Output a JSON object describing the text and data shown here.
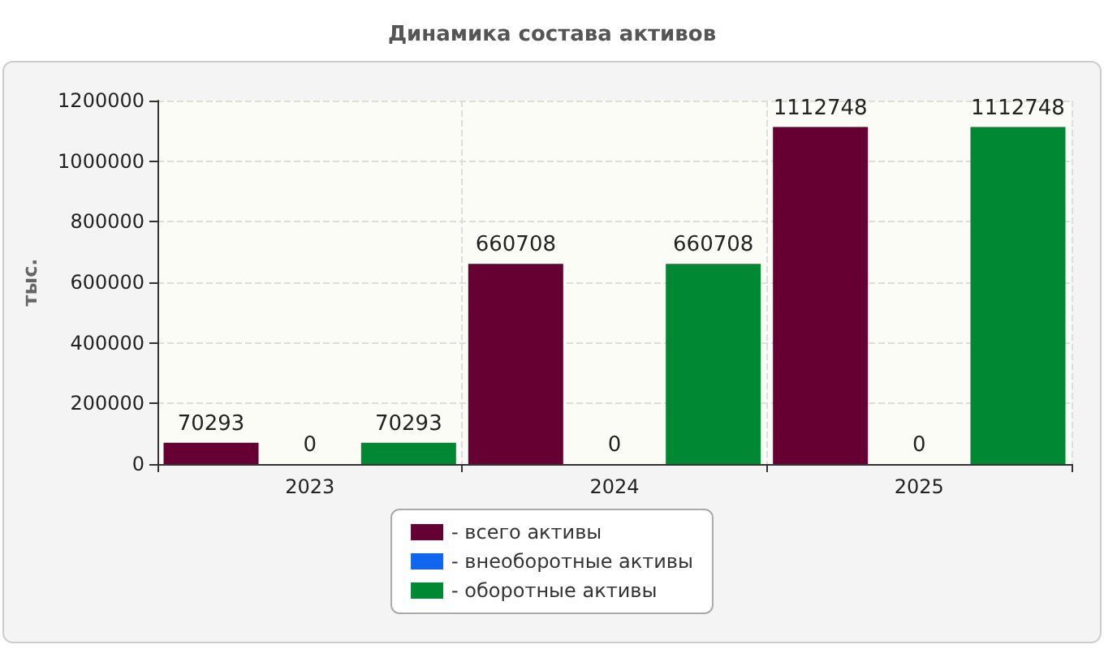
{
  "chart_data": {
    "type": "bar",
    "title": "Динамика состава активов",
    "ylabel": "тыс.",
    "categories": [
      "2023",
      "2024",
      "2025"
    ],
    "series": [
      {
        "name": "- всего активы",
        "color": "#660033",
        "values": [
          70293,
          660708,
          1112748
        ]
      },
      {
        "name": "- внеоборотные активы",
        "color": "#1166ee",
        "values": [
          0,
          0,
          0
        ]
      },
      {
        "name": "- оборотные активы",
        "color": "#008833",
        "values": [
          70293,
          660708,
          1112748
        ]
      }
    ],
    "ylim": [
      0,
      1200000
    ],
    "yticks": [
      0,
      200000,
      400000,
      600000,
      800000,
      1000000,
      1200000
    ],
    "grid": true,
    "legend": "bottom",
    "data_labels": true
  }
}
